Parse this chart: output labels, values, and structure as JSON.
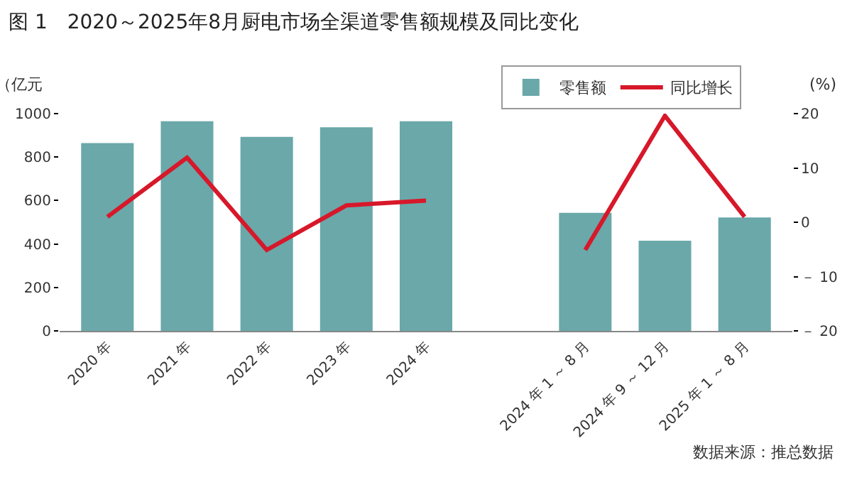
{
  "chart_data": {
    "type": "bar",
    "title": "图 1　2020～2025年8月厨电市场全渠道零售额规模及同比变化",
    "categories": [
      "2020 年",
      "2021 年",
      "2022 年",
      "2023 年",
      "2024 年",
      null,
      "2024 年 1 ～ 8 月",
      "2024 年 9 ～ 12 月",
      "2025 年 1 ～ 8 月"
    ],
    "series": [
      {
        "name": "零售额",
        "color": "#6aa8aa",
        "values": [
          864,
          965,
          893,
          937,
          965,
          null,
          543,
          415,
          522
        ]
      },
      {
        "name": "同比增长",
        "type": "line",
        "axis": "y2",
        "color": "#d7182a",
        "values": [
          1.0,
          11.9,
          -5.1,
          3.1,
          4.0,
          null,
          -5.1,
          19.6,
          1.0
        ]
      }
    ],
    "ylabel": "（亿元",
    "y2label": "(%)",
    "ylim": [
      0,
      1000
    ],
    "yticks": [
      0,
      200,
      400,
      600,
      800,
      1000
    ],
    "y2lim": [
      -20,
      20
    ],
    "y2ticks": [
      {
        "value": -20,
        "label": "－ 20"
      },
      {
        "value": -10,
        "label": "－ 10"
      },
      0,
      10,
      20
    ],
    "grid": false,
    "legend": "top right",
    "annotations": [
      "数据来源：推总数据"
    ]
  }
}
